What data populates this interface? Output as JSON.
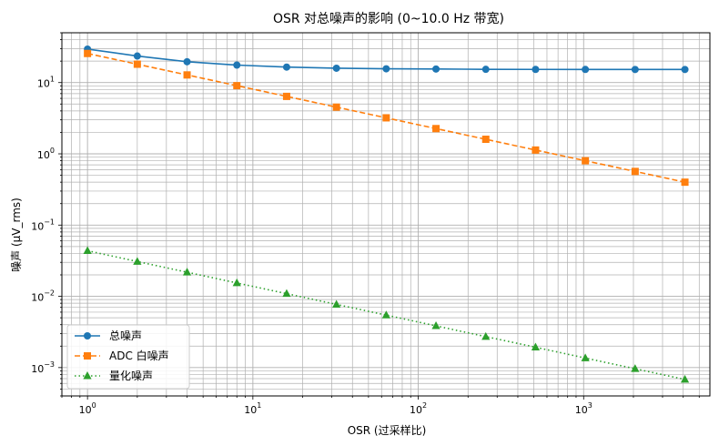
{
  "chart_data": {
    "type": "line",
    "title": "OSR 对总噪声的影响 (0~10.0 Hz 带宽)",
    "xlabel": "OSR (过采样比)",
    "ylabel": "噪声 (µV_rms)",
    "xscale": "log",
    "yscale": "log",
    "xlim": [
      0.7,
      5800
    ],
    "ylim": [
      0.0004,
      50
    ],
    "xticks": [
      {
        "value": 1,
        "base": "10",
        "exp": "0"
      },
      {
        "value": 10,
        "base": "10",
        "exp": "1"
      },
      {
        "value": 100,
        "base": "10",
        "exp": "2"
      },
      {
        "value": 1000,
        "base": "10",
        "exp": "3"
      }
    ],
    "yticks": [
      {
        "value": 0.001,
        "base": "10",
        "exp": "−3"
      },
      {
        "value": 0.01,
        "base": "10",
        "exp": "−2"
      },
      {
        "value": 0.1,
        "base": "10",
        "exp": "−1"
      },
      {
        "value": 1,
        "base": "10",
        "exp": "0"
      },
      {
        "value": 10,
        "base": "10",
        "exp": "1"
      }
    ],
    "grid": true,
    "legend_position": "bottom-left",
    "x": [
      1,
      2,
      4,
      8,
      16,
      32,
      64,
      128,
      256,
      512,
      1024,
      2048,
      4096
    ],
    "series": [
      {
        "name": "总噪声",
        "color": "#1f77b4",
        "linestyle": "solid",
        "marker": "circle",
        "values": [
          29.5,
          23.6,
          19.6,
          17.6,
          16.5,
          15.9,
          15.6,
          15.5,
          15.35,
          15.3,
          15.28,
          15.27,
          15.26
        ]
      },
      {
        "name": "ADC 白噪声",
        "color": "#ff7f0e",
        "linestyle": "dashed",
        "marker": "square",
        "values": [
          25.6,
          18.1,
          12.8,
          9.05,
          6.4,
          4.52,
          3.2,
          2.26,
          1.6,
          1.13,
          0.8,
          0.566,
          0.4
        ]
      },
      {
        "name": "量化噪声",
        "color": "#2ca02c",
        "linestyle": "dotted",
        "marker": "triangle",
        "values": [
          0.0436,
          0.0308,
          0.0218,
          0.0154,
          0.0109,
          0.0077,
          0.00545,
          0.00385,
          0.00272,
          0.00193,
          0.00136,
          0.000963,
          0.000681
        ]
      }
    ]
  }
}
